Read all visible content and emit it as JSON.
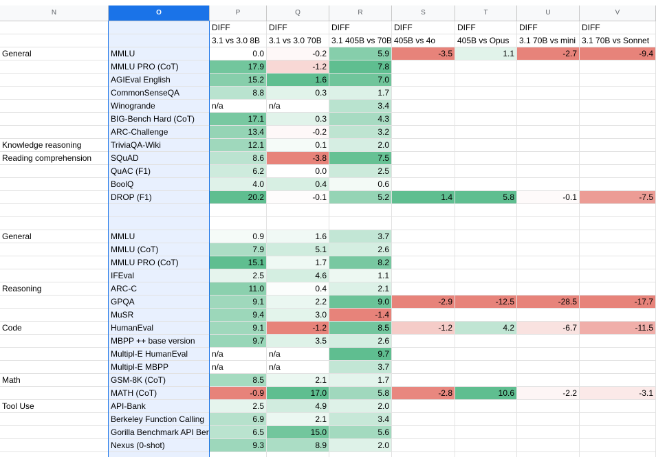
{
  "columns": [
    "N",
    "O",
    "P",
    "Q",
    "R",
    "S",
    "T",
    "U",
    "V"
  ],
  "selected_column": "O",
  "header_rows": [
    [
      "DIFF",
      "DIFF",
      "DIFF",
      "DIFF",
      "DIFF",
      "DIFF",
      "DIFF"
    ],
    [
      "3.1 vs 3.0 8B",
      "3.1 vs 3.0 70B",
      "3.1 405B vs 70B",
      "405B vs 4o",
      "405B vs Opus",
      "3.1 70B vs mini",
      "3.1 70B vs Sonnet"
    ]
  ],
  "sections": [
    {
      "rows": [
        {
          "group": "General",
          "benchmark": "MMLU",
          "values": [
            "0.0",
            "-0.2",
            "5.9",
            "-3.5",
            "1.1",
            "-2.7",
            "-9.4"
          ]
        },
        {
          "benchmark": "MMLU PRO (CoT)",
          "values": [
            "17.9",
            "-1.2",
            "7.8"
          ]
        },
        {
          "benchmark": "AGIEval English",
          "values": [
            "15.2",
            "1.6",
            "7.0"
          ]
        },
        {
          "benchmark": "CommonSenseQA",
          "values": [
            "8.8",
            "0.3",
            "1.7"
          ]
        },
        {
          "benchmark": "Winogrande",
          "values": [
            "n/a",
            "n/a",
            "3.4"
          ]
        },
        {
          "benchmark": "BIG-Bench Hard (CoT)",
          "values": [
            "17.1",
            "0.3",
            "4.3"
          ]
        },
        {
          "benchmark": "ARC-Challenge",
          "values": [
            "13.4",
            "-0.2",
            "3.2"
          ]
        },
        {
          "group": "Knowledge reasoning",
          "benchmark": "TriviaQA-Wiki",
          "values": [
            "12.1",
            "0.1",
            "2.0"
          ]
        },
        {
          "group": "Reading comprehension",
          "benchmark": "SQuAD",
          "values": [
            "8.6",
            "-3.8",
            "7.5"
          ]
        },
        {
          "benchmark": "QuAC (F1)",
          "values": [
            "6.2",
            "0.0",
            "2.5"
          ]
        },
        {
          "benchmark": "BoolQ",
          "values": [
            "4.0",
            "0.4",
            "0.6"
          ]
        },
        {
          "benchmark": "DROP (F1)",
          "values": [
            "20.2",
            "-0.1",
            "5.2",
            "1.4",
            "5.8",
            "-0.1",
            "-7.5"
          ]
        }
      ]
    },
    {
      "rows": [
        {
          "group": "General",
          "benchmark": "MMLU",
          "values": [
            "0.9",
            "1.6",
            "3.7"
          ]
        },
        {
          "benchmark": "MMLU (CoT)",
          "values": [
            "7.9",
            "5.1",
            "2.6"
          ]
        },
        {
          "benchmark": "MMLU PRO (CoT)",
          "values": [
            "15.1",
            "1.7",
            "8.2"
          ]
        },
        {
          "benchmark": "IFEval",
          "values": [
            "2.5",
            "4.6",
            "1.1"
          ]
        },
        {
          "group": "Reasoning",
          "benchmark": "ARC-C",
          "values": [
            "11.0",
            "0.4",
            "2.1"
          ]
        },
        {
          "benchmark": "GPQA",
          "values": [
            "9.1",
            "2.2",
            "9.0",
            "-2.9",
            "-12.5",
            "-28.5",
            "-17.7"
          ]
        },
        {
          "benchmark": "MuSR",
          "values": [
            "9.4",
            "3.0",
            "-1.4"
          ]
        },
        {
          "group": "Code",
          "benchmark": "HumanEval",
          "values": [
            "9.1",
            "-1.2",
            "8.5",
            "-1.2",
            "4.2",
            "-6.7",
            "-11.5"
          ]
        },
        {
          "benchmark": "MBPP ++ base version",
          "values": [
            "9.7",
            "3.5",
            "2.6"
          ]
        },
        {
          "benchmark": "Multipl-E HumanEval",
          "values": [
            "n/a",
            "n/a",
            "9.7"
          ]
        },
        {
          "benchmark": "Multipl-E MBPP",
          "values": [
            "n/a",
            "n/a",
            "3.7"
          ]
        },
        {
          "group": "Math",
          "benchmark": "GSM-8K (CoT)",
          "values": [
            "8.5",
            "2.1",
            "1.7"
          ]
        },
        {
          "benchmark": "MATH (CoT)",
          "values": [
            "-0.9",
            "17.0",
            "5.8",
            "-2.8",
            "10.6",
            "-2.2",
            "-3.1"
          ]
        },
        {
          "group": "Tool Use",
          "benchmark": "API-Bank",
          "values": [
            "2.5",
            "4.9",
            "2.0"
          ]
        },
        {
          "benchmark": "Berkeley Function Calling",
          "values": [
            "6.9",
            "2.1",
            "3.4"
          ]
        },
        {
          "benchmark": "Gorilla Benchmark API Ber",
          "values": [
            "6.5",
            "15.0",
            "5.6"
          ]
        },
        {
          "benchmark": "Nexus (0-shot)",
          "values": [
            "9.3",
            "8.9",
            "2.0"
          ]
        }
      ]
    }
  ]
}
